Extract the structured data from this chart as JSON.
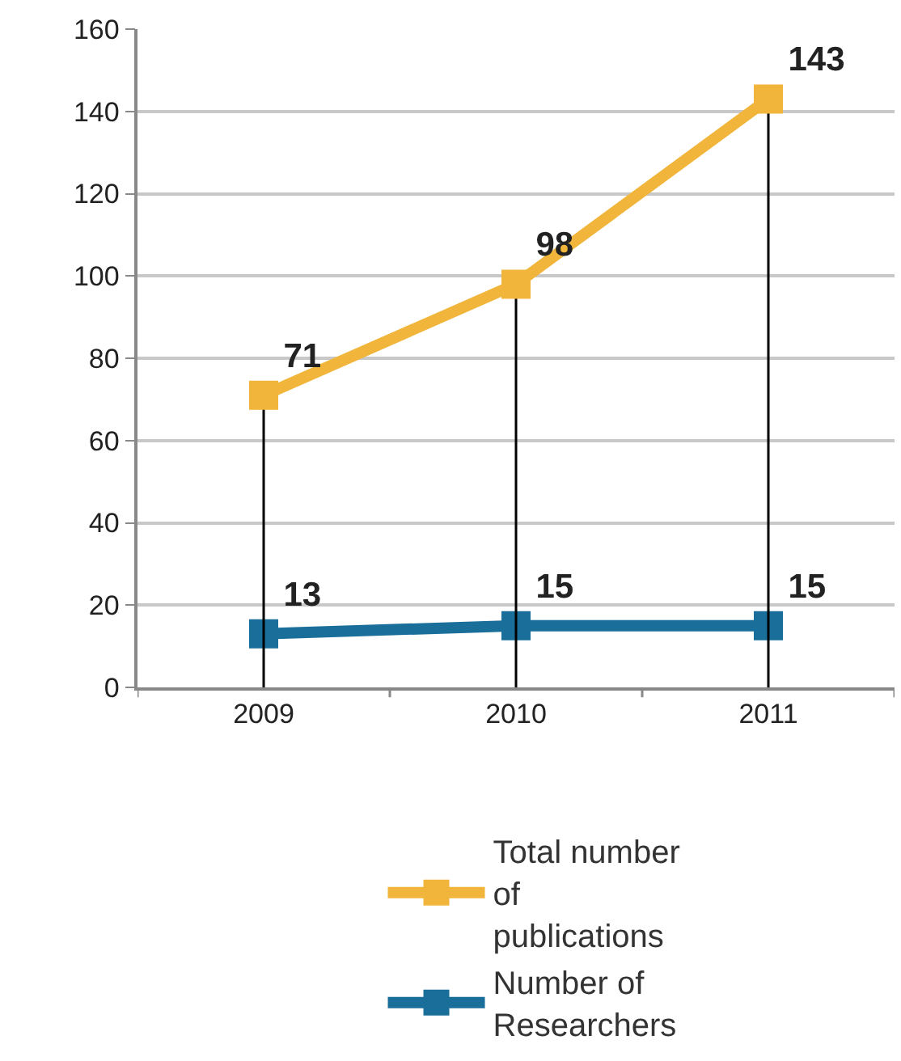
{
  "chart_data": {
    "type": "line",
    "categories": [
      "2009",
      "2010",
      "2011"
    ],
    "series": [
      {
        "name": "Total number of publications",
        "color": "#f0b53a",
        "values": [
          71,
          98,
          143
        ],
        "errors": [
          [
            0,
            71
          ],
          [
            0,
            98
          ],
          [
            0,
            143
          ]
        ]
      },
      {
        "name": "Number of Researchers",
        "color": "#1a6e9a",
        "values": [
          13,
          15,
          15
        ]
      }
    ],
    "ylim": [
      0,
      160
    ],
    "yticks": [
      0,
      20,
      40,
      60,
      80,
      100,
      120,
      140,
      160
    ],
    "grid": "y",
    "legend": "bottom",
    "marker": "square",
    "line_style": "solid",
    "data_labels": true
  }
}
